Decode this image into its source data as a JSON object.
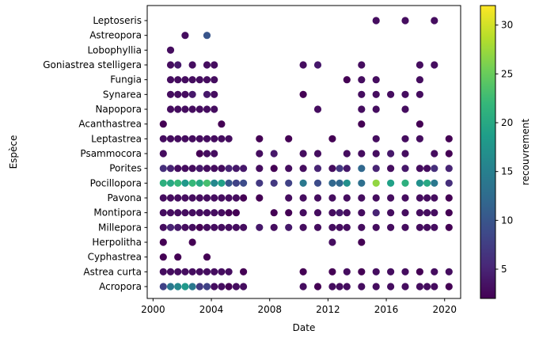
{
  "chart_data": {
    "type": "scatter",
    "xlabel": "Date",
    "ylabel": "Espèce",
    "colorbar_label": "recouvrement",
    "colormap": "viridis",
    "color_range": [
      2,
      32
    ],
    "colorbar_ticks": [
      5,
      10,
      15,
      20,
      25,
      30
    ],
    "xlim": [
      1999.6,
      2021.1
    ],
    "x_ticks": [
      2000,
      2004,
      2008,
      2012,
      2016,
      2020
    ],
    "categories": [
      "Acropora",
      "Astrea curta",
      "Cyphastrea",
      "Herpolitha",
      "Millepora",
      "Montipora",
      "Pavona",
      "Pocillopora",
      "Porites",
      "Psammocora",
      "Leptastrea",
      "Acanthastrea",
      "Napopora",
      "Synarea",
      "Fungia",
      "Goniastrea stelligera",
      "Lobophyllia",
      "Astreopora",
      "Leptoseris"
    ],
    "series": [
      {
        "species": "Acropora",
        "x": [
          2000.7,
          2001.2,
          2001.7,
          2002.2,
          2002.7,
          2003.2,
          2003.7,
          2004.2,
          2004.7,
          2005.2,
          2005.7,
          2006.2,
          2010.3,
          2011.3,
          2012.3,
          2012.8,
          2013.3,
          2014.3,
          2015.3,
          2016.3,
          2017.3,
          2018.3,
          2018.8,
          2019.3,
          2020.3
        ],
        "color_values": [
          8,
          14,
          16,
          18,
          14,
          7,
          8,
          3,
          3,
          2,
          3,
          3,
          3,
          2,
          3,
          3,
          3,
          3,
          3,
          3,
          3,
          3,
          3,
          3,
          2
        ]
      },
      {
        "species": "Astrea curta",
        "x": [
          2000.7,
          2001.2,
          2001.7,
          2002.2,
          2002.7,
          2003.2,
          2003.7,
          2004.2,
          2004.7,
          2005.2,
          2006.2,
          2010.3,
          2012.3,
          2013.3,
          2014.3,
          2015.3,
          2016.3,
          2017.3,
          2018.3,
          2019.3,
          2020.3
        ],
        "color_values": [
          3,
          3,
          3,
          3,
          3,
          3,
          3,
          3,
          3,
          3,
          2,
          2,
          2,
          3,
          2,
          3,
          3,
          3,
          2,
          3,
          3
        ]
      },
      {
        "species": "Cyphastrea",
        "x": [
          2000.7,
          2001.7,
          2003.7
        ],
        "color_values": [
          2,
          2,
          2
        ]
      },
      {
        "species": "Herpolitha",
        "x": [
          2000.7,
          2002.7,
          2012.3,
          2014.3
        ],
        "color_values": [
          2,
          2,
          3,
          2
        ]
      },
      {
        "species": "Millepora",
        "x": [
          2000.7,
          2001.2,
          2001.7,
          2002.2,
          2002.7,
          2003.2,
          2003.7,
          2004.2,
          2004.7,
          2005.2,
          2005.7,
          2006.2,
          2007.3,
          2008.3,
          2009.3,
          2010.3,
          2011.3,
          2012.3,
          2012.8,
          2013.3,
          2014.3,
          2015.3,
          2016.3,
          2017.3,
          2018.3,
          2018.8,
          2019.3,
          2020.3
        ],
        "color_values": [
          3,
          5,
          4,
          3,
          3,
          2,
          3,
          3,
          3,
          3,
          3,
          3,
          4,
          3,
          4,
          3,
          3,
          3,
          3,
          3,
          3,
          3,
          3,
          3,
          3,
          3,
          3,
          2
        ]
      },
      {
        "species": "Montipora",
        "x": [
          2000.7,
          2001.2,
          2001.7,
          2002.2,
          2002.7,
          2003.2,
          2003.7,
          2004.2,
          2004.7,
          2005.2,
          2005.7,
          2008.3,
          2009.3,
          2010.3,
          2011.3,
          2012.3,
          2012.8,
          2013.3,
          2014.3,
          2015.3,
          2016.3,
          2017.3,
          2018.3,
          2018.8,
          2019.3,
          2020.3
        ],
        "color_values": [
          3,
          3,
          3,
          3,
          3,
          3,
          3,
          3,
          3,
          2,
          2,
          2,
          2,
          3,
          3,
          3,
          4,
          3,
          3,
          5,
          3,
          3,
          3,
          3,
          3,
          2
        ]
      },
      {
        "species": "Pavona",
        "x": [
          2000.7,
          2001.2,
          2001.7,
          2002.2,
          2002.7,
          2003.2,
          2003.7,
          2004.2,
          2004.7,
          2005.2,
          2005.7,
          2006.2,
          2007.3,
          2009.3,
          2010.3,
          2011.3,
          2012.3,
          2013.3,
          2014.3,
          2015.3,
          2016.3,
          2017.3,
          2018.3,
          2018.8,
          2019.3,
          2020.3
        ],
        "color_values": [
          3,
          3,
          3,
          3,
          3,
          3,
          3,
          3,
          3,
          3,
          3,
          2,
          2,
          3,
          3,
          3,
          3,
          3,
          3,
          3,
          3,
          3,
          3,
          3,
          3,
          2
        ]
      },
      {
        "species": "Pocillopora",
        "x": [
          2000.7,
          2001.2,
          2001.7,
          2002.2,
          2002.7,
          2003.2,
          2003.7,
          2004.2,
          2004.7,
          2005.2,
          2005.7,
          2006.2,
          2007.3,
          2008.3,
          2009.3,
          2010.3,
          2011.3,
          2012.3,
          2012.8,
          2013.3,
          2014.3,
          2015.3,
          2016.3,
          2017.3,
          2018.3,
          2018.8,
          2019.3,
          2020.3
        ],
        "color_values": [
          21,
          20,
          22,
          18,
          22,
          20,
          23,
          16,
          19,
          10,
          8,
          9,
          7,
          7,
          8,
          14,
          9,
          12,
          12,
          17,
          13,
          27,
          19,
          21,
          17,
          20,
          14,
          6
        ]
      },
      {
        "species": "Porites",
        "x": [
          2000.7,
          2001.2,
          2001.7,
          2002.2,
          2002.7,
          2003.2,
          2003.7,
          2004.2,
          2004.7,
          2005.2,
          2005.7,
          2006.2,
          2007.3,
          2008.3,
          2009.3,
          2010.3,
          2011.3,
          2012.3,
          2012.8,
          2013.3,
          2014.3,
          2015.3,
          2016.3,
          2017.3,
          2018.3,
          2018.8,
          2019.3,
          2020.3
        ],
        "color_values": [
          6,
          5,
          3,
          3,
          3,
          4,
          3,
          3,
          3,
          5,
          4,
          4,
          3,
          2,
          3,
          3,
          5,
          3,
          7,
          4,
          12,
          5,
          3,
          4,
          3,
          3,
          6,
          5
        ]
      },
      {
        "species": "Psammocora",
        "x": [
          2000.7,
          2003.2,
          2003.7,
          2004.2,
          2007.3,
          2008.3,
          2010.3,
          2011.3,
          2013.3,
          2014.3,
          2015.3,
          2016.3,
          2017.3,
          2019.3,
          2020.3
        ],
        "color_values": [
          3,
          2,
          3,
          3,
          3,
          4,
          3,
          3,
          3,
          3,
          3,
          4,
          3,
          3,
          2
        ]
      },
      {
        "species": "Leptastrea",
        "x": [
          2000.7,
          2001.2,
          2001.7,
          2002.2,
          2002.7,
          2003.2,
          2003.7,
          2004.2,
          2004.7,
          2005.2,
          2007.3,
          2009.3,
          2012.3,
          2015.3,
          2017.3,
          2018.3,
          2020.3
        ],
        "color_values": [
          3,
          3,
          3,
          3,
          3,
          3,
          3,
          3,
          3,
          3,
          2,
          2,
          2,
          3,
          3,
          3,
          2
        ]
      },
      {
        "species": "Acanthastrea",
        "x": [
          2000.7,
          2004.7,
          2014.3,
          2018.3
        ],
        "color_values": [
          2,
          2,
          2,
          2
        ]
      },
      {
        "species": "Napopora",
        "x": [
          2001.2,
          2001.7,
          2002.2,
          2002.7,
          2003.2,
          2003.7,
          2004.2,
          2011.3,
          2014.3,
          2015.3,
          2017.3
        ],
        "color_values": [
          3,
          3,
          3,
          3,
          3,
          3,
          3,
          3,
          3,
          3,
          3
        ]
      },
      {
        "species": "Synarea",
        "x": [
          2001.2,
          2001.7,
          2002.2,
          2002.7,
          2003.7,
          2004.2,
          2010.3,
          2014.3,
          2015.3,
          2016.3,
          2017.3,
          2018.3
        ],
        "color_values": [
          3,
          3,
          3,
          4,
          4,
          3,
          2,
          3,
          3,
          3,
          3,
          3
        ]
      },
      {
        "species": "Fungia",
        "x": [
          2001.2,
          2001.7,
          2002.2,
          2002.7,
          2003.2,
          2003.7,
          2004.2,
          2013.3,
          2014.3,
          2015.3,
          2018.3
        ],
        "color_values": [
          3,
          3,
          3,
          3,
          3,
          3,
          3,
          2,
          3,
          3,
          3
        ]
      },
      {
        "species": "Goniastrea stelligera",
        "x": [
          2001.2,
          2001.7,
          2002.7,
          2003.7,
          2004.2,
          2010.3,
          2011.3,
          2014.3,
          2018.3,
          2019.3
        ],
        "color_values": [
          3,
          4,
          3,
          3,
          3,
          3,
          4,
          3,
          3,
          3
        ]
      },
      {
        "species": "Lobophyllia",
        "x": [
          2001.2
        ],
        "color_values": [
          3
        ]
      },
      {
        "species": "Astreopora",
        "x": [
          2002.2,
          2003.7
        ],
        "color_values": [
          3,
          10
        ]
      },
      {
        "species": "Leptoseris",
        "x": [
          2015.3,
          2017.3,
          2019.3
        ],
        "color_values": [
          3,
          3,
          3
        ]
      }
    ]
  }
}
